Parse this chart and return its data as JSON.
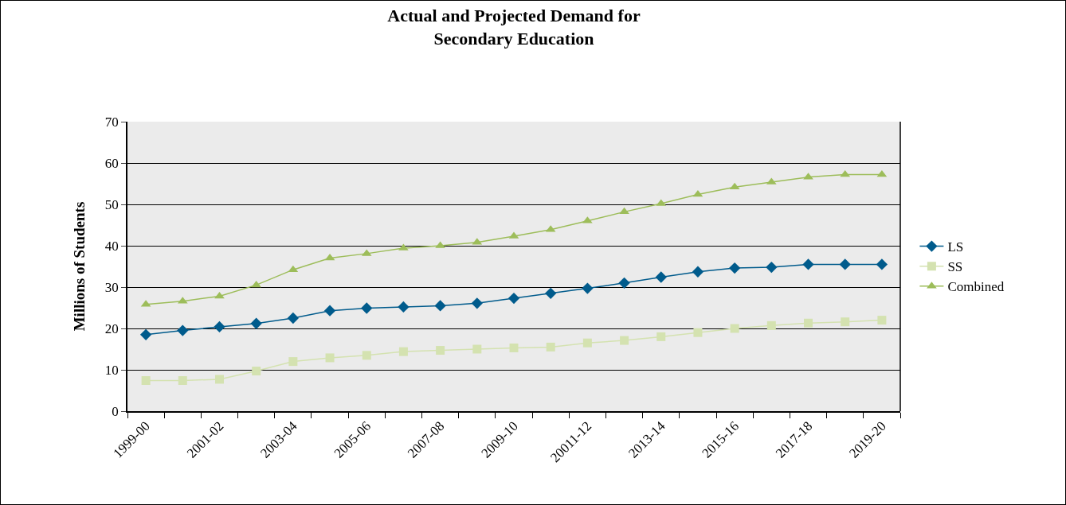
{
  "chart_data": {
    "type": "line",
    "title": "Actual and Projected Demand for\nSecondary Education",
    "ylabel": "Millions of Students",
    "categories": [
      "1999-00",
      null,
      "2001-02",
      null,
      "2003-04",
      null,
      "2005-06",
      null,
      "2007-08",
      null,
      "2009-10",
      null,
      "20011-12",
      null,
      "2013-14",
      null,
      "2015-16",
      null,
      "2017-18",
      null,
      "2019-20"
    ],
    "series": [
      {
        "name": "LS",
        "color": "#005b8c",
        "marker": "diamond",
        "values": [
          18.5,
          19.5,
          20.4,
          21.2,
          22.5,
          24.3,
          24.9,
          25.2,
          25.5,
          26.1,
          27.3,
          28.5,
          29.7,
          31,
          32.4,
          33.7,
          34.6,
          34.8,
          35.5,
          35.5,
          35.5
        ]
      },
      {
        "name": "SS",
        "color": "#d4e2b0",
        "marker": "square",
        "values": [
          7.4,
          7.4,
          7.7,
          9.7,
          12,
          12.9,
          13.5,
          14.4,
          14.7,
          15,
          15.3,
          15.5,
          16.5,
          17.1,
          18,
          19,
          20,
          20.7,
          21.3,
          21.6,
          22
        ]
      },
      {
        "name": "Combined",
        "color": "#9dbd5a",
        "marker": "triangle",
        "values": [
          25.8,
          26.6,
          27.8,
          30.5,
          34.2,
          37,
          38.1,
          39.4,
          40,
          40.8,
          42.3,
          43.9,
          46,
          48.2,
          50.2,
          52.4,
          54.2,
          55.4,
          56.6,
          57.2,
          57.2
        ]
      }
    ],
    "ylim": [
      0,
      70
    ],
    "yticks": [
      0,
      10,
      20,
      30,
      40,
      50,
      60,
      70
    ],
    "grid": "y",
    "legend": "right",
    "line_style": "solid"
  }
}
